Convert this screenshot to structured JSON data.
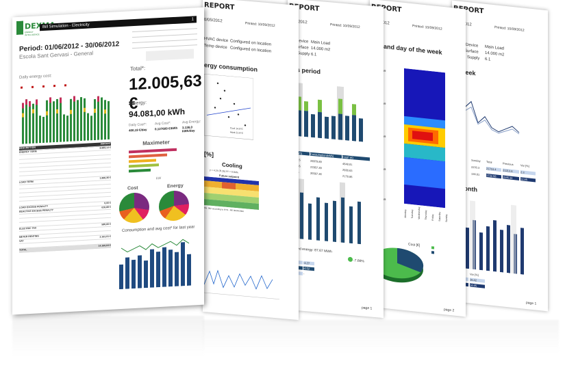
{
  "report": {
    "logo_text": "DEXMA",
    "logo_sub": "ENERGY INTELLIGENCE",
    "header_title": "Bill Simulation - Electricity",
    "period": "Period: 01/06/2012 - 30/06/2012",
    "location": "Escola Sant Gervasi - General",
    "daily_cost_label": "Daily energy cost:",
    "total_label": "Total*:",
    "total_value": "12.005,63 €",
    "energy_label": "Energy:",
    "energy_value": "94.081,00 kWh",
    "daily_cost_sub": "Daily Cost*:",
    "daily_cost_value": "400,19 €/day",
    "avg_cost_sub": "Avg Cost*:",
    "avg_cost_value": "0,127609 €/kWh",
    "avg_energy_sub": "Avg Energy:",
    "avg_energy_value": "3.136,0 kWh/day",
    "desc_header": "DESCRIPTION",
    "amount_header": "AMOUNT",
    "energy_term": "ENERGY TERM",
    "energy_term_value": "8.883,13 €",
    "load_term": "LOAD TERM",
    "load_term_value": "1.866,36 €",
    "load_excess": "LOAD EXCESS PENALTY",
    "load_excess_value": "0,00 €",
    "reactive": "REACTIVE EXCESS PENALTY",
    "reactive_value": "616,88 €",
    "electric_tax": "ELECTRIC TAX",
    "electric_tax_value": "580,66 €",
    "meter_renting": "METER RENTING",
    "vat": "VAT",
    "vat_value": "2.161,01 €",
    "total_row": "TOTAL",
    "total_row_value": "14.166,64 €",
    "maximeter": "Maximeter",
    "maximeter_unit": "kW",
    "cost_pie": "Cost",
    "energy_pie": "Energy",
    "consumption_chart": "Consumption and avg cost* for last year",
    "page_number": "1"
  },
  "page2": {
    "title_part": "REPORT",
    "date": "0/05/2012",
    "printed": "Printed: 10/09/2012",
    "device1": "HVAC device",
    "device1_status": "Configured on location",
    "device2": "Temp device",
    "device2_status": "Configured on location",
    "section": "ergy consumption",
    "cooling": "Cooling",
    "formula": "y = 4.24 (R.2b) R² = 0.84%",
    "future": "Future setpoint",
    "legend1": "Cool 14.0°C",
    "legend2": "Heat 21.0°C",
    "pct": "[%]",
    "footnote": "SN: 99Z according to NYS - RE 00/04/2060"
  },
  "page3": {
    "title_part": "REPORT",
    "date": "1/07/2012",
    "printed": "Printed: 10/09/2012",
    "device_label": "Device",
    "device_value": "Main Load",
    "surface_label": "Surface",
    "surface_value": "14.000 m2",
    "supply_label": "Supply",
    "supply_value": "6.1",
    "section": "ous period",
    "col1": "ious (kWh)",
    "col2": "Consumption(kWh)",
    "col3": "Cost* (€)",
    "rows": [
      [
        "0.180415",
        "28979.89",
        "4648.81"
      ],
      [
        "0.127655",
        "22957.39",
        "2930.63"
      ],
      [
        "0.00126",
        "35567.36",
        "2178.86"
      ]
    ],
    "med_energy": "med energy: 87.67 MWh",
    "pct": "-7.66%",
    "cols": [
      "9026",
      "-4.27",
      "8875",
      "-6.52",
      "0.20",
      "-"
    ],
    "page": "page 1"
  },
  "page4": {
    "title_part": "REPORT",
    "date": "1/07/2012",
    "printed": "Printed: 10/09/2012",
    "section": "day and day of the week",
    "times": [
      "00:00-00:59",
      "06:00-06:59",
      "12:00-12:59",
      "18:00-18:59",
      "23:00-23:59"
    ],
    "days": [
      "Monday",
      "Tuesday",
      "Wednesday",
      "Thursday",
      "Friday",
      "Saturday",
      "Sunday"
    ],
    "cost_label": "Cost [€]",
    "page": "page 2"
  },
  "page5": {
    "title_part": "REPORT",
    "date": "0/06/2012",
    "printed": "Printed: 10/09/2012",
    "device_label": "Device",
    "device_value": "Main Load",
    "surface_label": "Surface",
    "surface_value": "14.000 m2",
    "supply_label": "Supply",
    "supply_value": "6.1",
    "section1": "st week",
    "table_head": [
      "Saturday",
      "Sunday",
      "Total",
      "Previous",
      "Var [%]"
    ],
    "table_row1": [
      "2343.2",
      "2233.3",
      "21710.4",
      "21213.8",
      "2.3"
    ],
    "table_row2": [
      "143.55",
      "136.81",
      "1732.58",
      "1535.34",
      "12.85"
    ],
    "section2": "s month",
    "mini_head": [
      "onth",
      "Var [%]"
    ],
    "mini_row1": [
      "00.76",
      "16.42"
    ],
    "mini_row2": [
      "12.19",
      "14.95"
    ],
    "page": "page 1"
  }
}
